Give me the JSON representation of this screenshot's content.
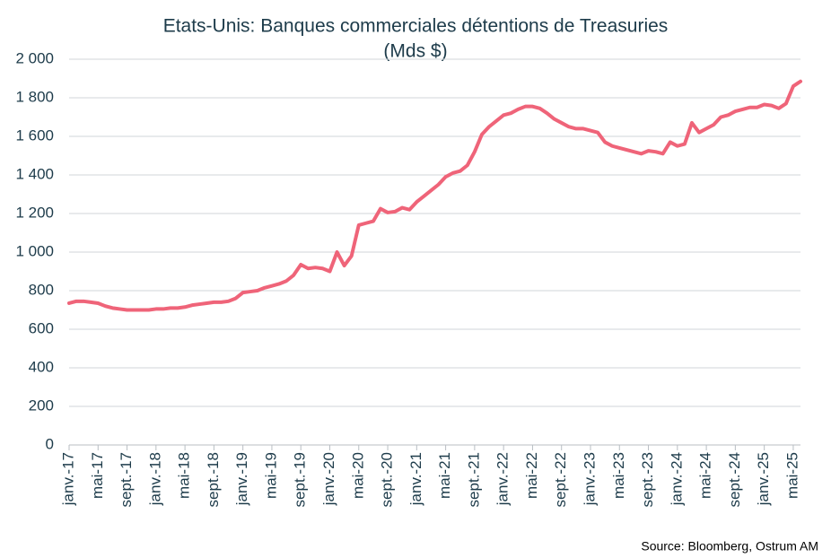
{
  "chart_data": {
    "type": "line",
    "title": "Etats-Unis: Banques commerciales détentions de Treasuries",
    "subtitle": "(Mds $)",
    "source": "Source: Bloomberg,  Ostrum AM",
    "color": "#ef6479",
    "grid": true,
    "ylim": [
      0,
      2000
    ],
    "yticks": [
      0,
      200,
      400,
      600,
      800,
      {
        "value": 1000,
        "label": "1 000"
      },
      {
        "value": 1200,
        "label": "1 200"
      },
      {
        "value": 1400,
        "label": "1 400"
      },
      {
        "value": 1600,
        "label": "1 600"
      },
      {
        "value": 1800,
        "label": "1 800"
      },
      {
        "value": 2000,
        "label": "2 000"
      }
    ],
    "categories": [
      "janv.-17",
      null,
      null,
      null,
      "mai-17",
      null,
      null,
      null,
      "sept.-17",
      null,
      null,
      null,
      "janv.-18",
      null,
      null,
      null,
      "mai-18",
      null,
      null,
      null,
      "sept.-18",
      null,
      null,
      null,
      "janv.-19",
      null,
      null,
      null,
      "mai-19",
      null,
      null,
      null,
      "sept.-19",
      null,
      null,
      null,
      "janv.-20",
      null,
      null,
      null,
      "mai-20",
      null,
      null,
      null,
      "sept.-20",
      null,
      null,
      null,
      "janv.-21",
      null,
      null,
      null,
      "mai-21",
      null,
      null,
      null,
      "sept.-21",
      null,
      null,
      null,
      "janv.-22",
      null,
      null,
      null,
      "mai-22",
      null,
      null,
      null,
      "sept.-22",
      null,
      null,
      null,
      "janv.-23",
      null,
      null,
      null,
      "mai-23",
      null,
      null,
      null,
      "sept.-23",
      null,
      null,
      null,
      "janv.-24",
      null,
      null,
      null,
      "mai-24",
      null,
      null,
      null,
      "sept.-24",
      null,
      null,
      null,
      "janv.-25",
      null,
      null,
      null,
      "mai-25",
      null
    ],
    "values": [
      735,
      745,
      745,
      740,
      735,
      720,
      710,
      705,
      700,
      700,
      700,
      700,
      705,
      705,
      710,
      710,
      715,
      725,
      730,
      735,
      740,
      740,
      745,
      760,
      790,
      795,
      800,
      815,
      825,
      835,
      850,
      880,
      935,
      915,
      920,
      915,
      900,
      1000,
      930,
      980,
      1140,
      1150,
      1160,
      1225,
      1205,
      1210,
      1230,
      1220,
      1260,
      1290,
      1320,
      1350,
      1390,
      1410,
      1420,
      1450,
      1520,
      1610,
      1650,
      1680,
      1710,
      1720,
      1740,
      1755,
      1755,
      1745,
      1720,
      1690,
      1670,
      1650,
      1640,
      1640,
      1630,
      1620,
      1570,
      1550,
      1540,
      1530,
      1520,
      1510,
      1525,
      1520,
      1510,
      1570,
      1550,
      1560,
      1670,
      1620,
      1640,
      1660,
      1700,
      1710,
      1730,
      1740,
      1750,
      1750,
      1765,
      1760,
      1745,
      1770,
      1860,
      1885
    ]
  }
}
